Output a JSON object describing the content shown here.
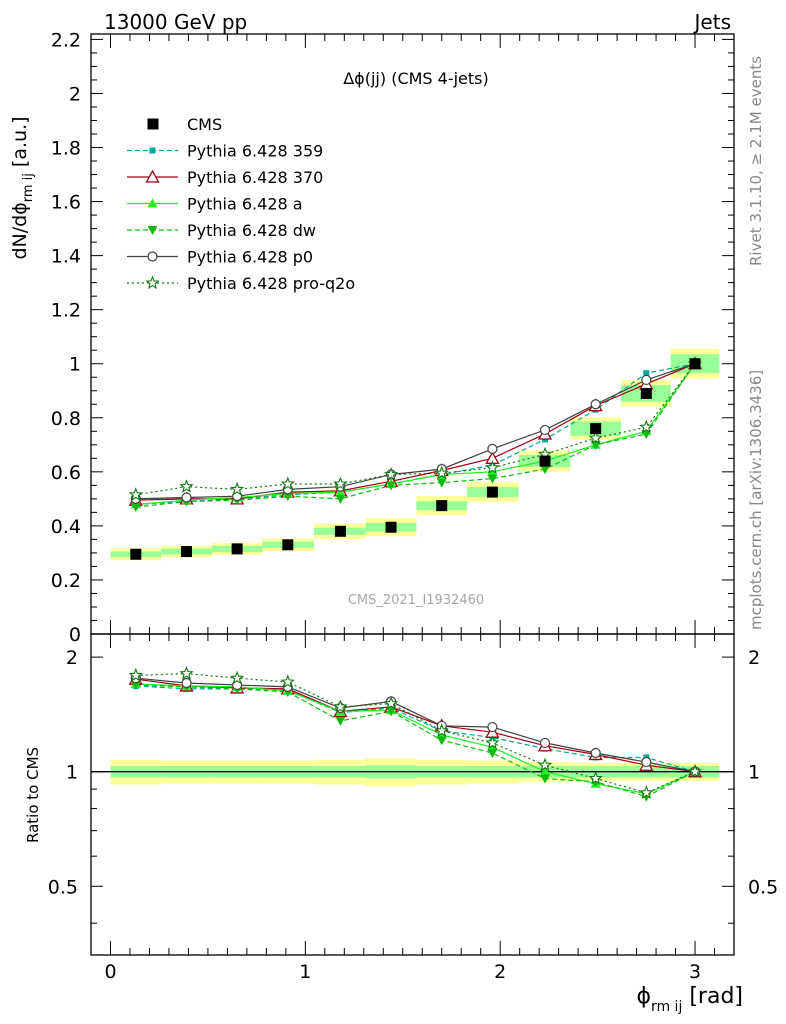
{
  "header": {
    "left": "13000 GeV pp",
    "right": "Jets"
  },
  "side_labels": {
    "rivet": "Rivet 3.1.10, ≥ 2.1M events",
    "mcplots": "mcplots.cern.ch [arXiv:1306.3436]"
  },
  "chart_data": {
    "type": "scatter",
    "title": "Δϕ(jj) (CMS 4-jets)",
    "watermark": "CMS_2021_I1932460",
    "xlabel": {
      "main": "ϕ",
      "sub": "rm ij",
      "unit": " [rad]"
    },
    "ylabel": {
      "main": "dN/dϕ",
      "sub": "rm ij",
      "unit": " [a.u.]"
    },
    "ratio_ylabel": "Ratio to CMS",
    "xlim": [
      -0.1,
      3.2
    ],
    "ylim": [
      0,
      2.22
    ],
    "ratio_ylim": [
      0.33,
      2.3
    ],
    "x_ticks": [
      "0",
      "1",
      "2",
      "3"
    ],
    "y_ticks": [
      "0",
      "0.2",
      "0.4",
      "0.6",
      "0.8",
      "1",
      "1.2",
      "1.4",
      "1.6",
      "1.8",
      "2",
      "2.2"
    ],
    "ratio_ticks": [
      "0.5",
      "1",
      "2"
    ],
    "x": [
      0.13,
      0.39,
      0.65,
      0.91,
      1.18,
      1.44,
      1.7,
      1.96,
      2.23,
      2.49,
      2.75,
      3.0
    ],
    "data": {
      "name": "CMS",
      "values": [
        0.295,
        0.305,
        0.315,
        0.33,
        0.38,
        0.395,
        0.475,
        0.525,
        0.64,
        0.76,
        0.89,
        1.0
      ]
    },
    "band_inner": [
      0.035,
      0.035,
      0.035,
      0.035,
      0.035,
      0.04,
      0.035,
      0.035,
      0.035,
      0.035,
      0.035,
      0.035
    ],
    "band_outer": [
      0.075,
      0.07,
      0.07,
      0.07,
      0.075,
      0.085,
      0.075,
      0.07,
      0.06,
      0.055,
      0.055,
      0.055
    ],
    "legend_position": "top-left",
    "series": [
      {
        "name": "Pythia 6.428 359",
        "color": "#00a896",
        "dash": "5,3",
        "marker": "square",
        "values": [
          0.48,
          0.49,
          0.5,
          0.515,
          0.525,
          0.555,
          0.59,
          0.625,
          0.72,
          0.83,
          0.965,
          1.0
        ],
        "ratio": [
          1.68,
          1.65,
          1.65,
          1.64,
          1.43,
          1.47,
          1.28,
          1.23,
          1.15,
          1.09,
          1.09,
          1.0
        ]
      },
      {
        "name": "Pythia 6.428 370",
        "color": "#a00010",
        "dash": "",
        "marker": "triangle-open",
        "values": [
          0.495,
          0.5,
          0.5,
          0.525,
          0.53,
          0.565,
          0.605,
          0.65,
          0.74,
          0.845,
          0.925,
          1.0
        ],
        "ratio": [
          1.75,
          1.68,
          1.66,
          1.65,
          1.44,
          1.48,
          1.32,
          1.27,
          1.17,
          1.11,
          1.04,
          1.0
        ]
      },
      {
        "name": "Pythia 6.428 a",
        "color": "#22ee22",
        "dash": "",
        "marker": "triangle",
        "values": [
          0.48,
          0.495,
          0.505,
          0.52,
          0.525,
          0.555,
          0.59,
          0.6,
          0.64,
          0.7,
          0.75,
          1.0
        ],
        "ratio": [
          1.7,
          1.68,
          1.67,
          1.63,
          1.44,
          1.45,
          1.25,
          1.16,
          1.0,
          0.93,
          0.875,
          1.0
        ]
      },
      {
        "name": "Pythia 6.428 dw",
        "color": "#10bb10",
        "dash": "5,3",
        "marker": "triangle-down",
        "values": [
          0.47,
          0.49,
          0.495,
          0.51,
          0.5,
          0.55,
          0.56,
          0.575,
          0.61,
          0.7,
          0.74,
          1.0
        ],
        "ratio": [
          1.69,
          1.67,
          1.65,
          1.62,
          1.36,
          1.44,
          1.21,
          1.12,
          0.96,
          0.94,
          0.86,
          1.0
        ]
      },
      {
        "name": "Pythia 6.428 p0",
        "color": "#404040",
        "dash": "",
        "marker": "circle-open",
        "values": [
          0.5,
          0.505,
          0.51,
          0.535,
          0.545,
          0.59,
          0.61,
          0.685,
          0.755,
          0.85,
          0.94,
          1.0
        ],
        "ratio": [
          1.76,
          1.71,
          1.69,
          1.67,
          1.47,
          1.53,
          1.32,
          1.31,
          1.19,
          1.12,
          1.06,
          1.0
        ]
      },
      {
        "name": "Pythia 6.428 pro-q2o",
        "color": "#117711",
        "dash": "2,3",
        "marker": "star",
        "values": [
          0.515,
          0.545,
          0.535,
          0.555,
          0.555,
          0.59,
          0.595,
          0.615,
          0.665,
          0.725,
          0.765,
          1.0
        ],
        "ratio": [
          1.79,
          1.81,
          1.76,
          1.72,
          1.48,
          1.51,
          1.28,
          1.19,
          1.04,
          0.96,
          0.88,
          1.0
        ]
      }
    ]
  }
}
